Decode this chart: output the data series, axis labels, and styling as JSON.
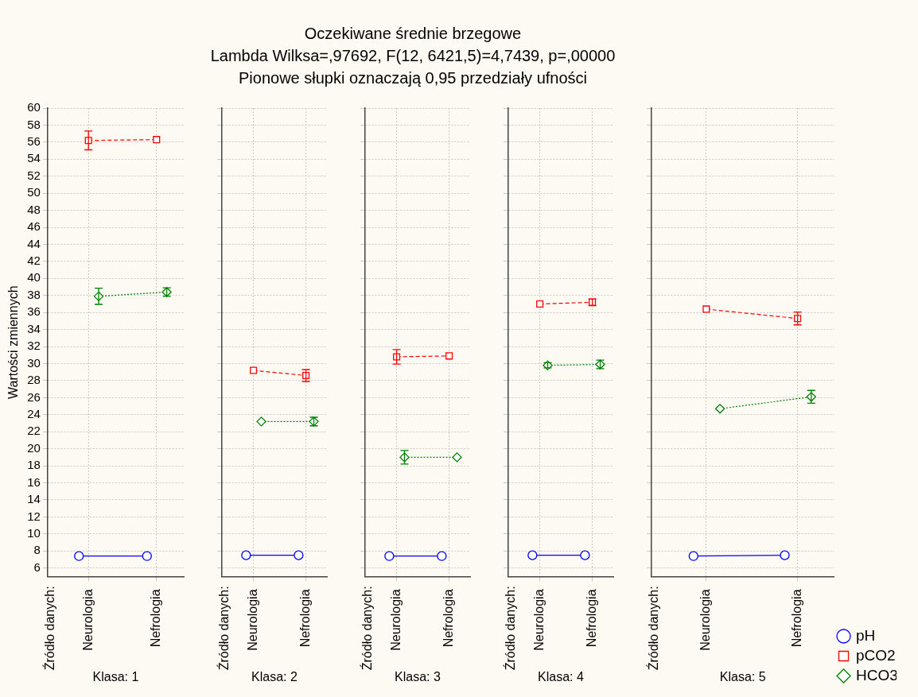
{
  "chart_data": [
    {
      "type": "line",
      "annotations": [
        "Źródło danych:"
      ],
      "xlabel": "Klasa: 1",
      "ylabel": "Wartości zmiennych",
      "categories": [
        "Neurologia",
        "Nefrologia"
      ],
      "ylim": [
        5,
        60
      ],
      "yticks": [
        6,
        8,
        10,
        12,
        14,
        16,
        18,
        20,
        22,
        24,
        26,
        28,
        30,
        32,
        34,
        36,
        38,
        40,
        42,
        44,
        46,
        48,
        50,
        52,
        54,
        56,
        58,
        60
      ],
      "grid": true,
      "series": [
        {
          "color": "#0000ff",
          "marker": "circle",
          "line_style": "solid",
          "values": [
            7.4,
            7.4
          ]
        },
        {
          "color": "#ff0000",
          "marker": "square",
          "line_style": "dashed",
          "values": [
            56.2,
            56.3
          ],
          "errors": [
            1.1,
            null
          ]
        },
        {
          "color": "#008000",
          "marker": "diamond",
          "line_style": "dotted",
          "values": [
            37.9,
            38.4
          ],
          "errors": [
            0.95,
            0.5
          ]
        }
      ]
    },
    {
      "type": "line",
      "annotations": [
        "Źródło danych:"
      ],
      "xlabel": "Klasa: 2",
      "categories": [
        "Neurologia",
        "Nefrologia"
      ],
      "ylim": [
        5,
        60
      ],
      "yticks": [
        6,
        8,
        10,
        12,
        14,
        16,
        18,
        20,
        22,
        24,
        26,
        28,
        30,
        32,
        34,
        36,
        38,
        40,
        42,
        44,
        46,
        48,
        50,
        52,
        54,
        56,
        58,
        60
      ],
      "grid": true,
      "tick_labels": "x",
      "series": [
        {
          "color": "#0000ff",
          "marker": "circle",
          "line_style": "solid",
          "values": [
            7.5,
            7.5
          ]
        },
        {
          "color": "#ff0000",
          "marker": "square",
          "line_style": "dashed",
          "values": [
            29.2,
            28.6
          ],
          "errors": [
            null,
            0.7
          ]
        },
        {
          "color": "#008000",
          "marker": "diamond",
          "line_style": "dotted",
          "values": [
            23.2,
            23.2
          ],
          "errors": [
            null,
            0.5
          ]
        }
      ]
    },
    {
      "type": "line",
      "title": "Oczekiwane średnie brzegowe",
      "subtitle": "Lambda Wilksa=,97692, F(12, 6421,5)=4,7439, p=,00000",
      "annotations": [
        "Pionowe słupki oznaczają 0,95 przedziały ufności",
        "Źródło danych:"
      ],
      "xlabel": "Klasa: 3",
      "categories": [
        "Neurologia",
        "Nefrologia"
      ],
      "ylim": [
        5,
        60
      ],
      "yticks": [
        6,
        8,
        10,
        12,
        14,
        16,
        18,
        20,
        22,
        24,
        26,
        28,
        30,
        32,
        34,
        36,
        38,
        40,
        42,
        44,
        46,
        48,
        50,
        52,
        54,
        56,
        58,
        60
      ],
      "grid": true,
      "tick_labels": "x",
      "series": [
        {
          "color": "#0000ff",
          "marker": "circle",
          "line_style": "solid",
          "values": [
            7.4,
            7.4
          ]
        },
        {
          "color": "#ff0000",
          "marker": "square",
          "line_style": "dashed",
          "values": [
            30.8,
            30.9
          ],
          "errors": [
            0.85,
            null
          ]
        },
        {
          "color": "#008000",
          "marker": "diamond",
          "line_style": "dotted",
          "values": [
            19.0,
            19.0
          ],
          "errors": [
            0.8,
            null
          ]
        }
      ]
    },
    {
      "type": "line",
      "annotations": [
        "Źródło danych:"
      ],
      "xlabel": "Klasa: 4",
      "categories": [
        "Neurologia",
        "Nefrologia"
      ],
      "ylim": [
        5,
        60
      ],
      "yticks": [
        6,
        8,
        10,
        12,
        14,
        16,
        18,
        20,
        22,
        24,
        26,
        28,
        30,
        32,
        34,
        36,
        38,
        40,
        42,
        44,
        46,
        48,
        50,
        52,
        54,
        56,
        58,
        60
      ],
      "grid": true,
      "tick_labels": "x",
      "series": [
        {
          "color": "#0000ff",
          "marker": "circle",
          "line_style": "solid",
          "values": [
            7.5,
            7.5
          ]
        },
        {
          "color": "#ff0000",
          "marker": "square",
          "line_style": "dashed",
          "values": [
            37.0,
            37.2
          ],
          "errors": [
            null,
            0.4
          ]
        },
        {
          "color": "#008000",
          "marker": "diamond",
          "line_style": "dotted",
          "values": [
            29.8,
            29.9
          ],
          "errors": [
            0.3,
            0.5
          ]
        }
      ]
    },
    {
      "type": "line",
      "annotations": [
        "Źródło danych:"
      ],
      "xlabel": "Klasa: 5",
      "categories": [
        "Neurologia",
        "Nefrologia"
      ],
      "ylim": [
        5,
        60
      ],
      "yticks": [
        6,
        8,
        10,
        12,
        14,
        16,
        18,
        20,
        22,
        24,
        26,
        28,
        30,
        32,
        34,
        36,
        38,
        40,
        42,
        44,
        46,
        48,
        50,
        52,
        54,
        56,
        58,
        60
      ],
      "grid": true,
      "tick_labels": "x",
      "legend": "bottom right",
      "series": [
        {
          "name": "pH",
          "color": "#0000ff",
          "marker": "circle",
          "line_style": "solid",
          "values": [
            7.4,
            7.5
          ]
        },
        {
          "name": "pCO2",
          "color": "#ff0000",
          "marker": "square",
          "line_style": "dashed",
          "values": [
            36.4,
            35.3
          ],
          "errors": [
            null,
            0.75
          ]
        },
        {
          "name": "HCO3",
          "color": "#008000",
          "marker": "diamond",
          "line_style": "dotted",
          "values": [
            24.7,
            26.1
          ],
          "errors": [
            null,
            0.75
          ]
        }
      ]
    }
  ]
}
